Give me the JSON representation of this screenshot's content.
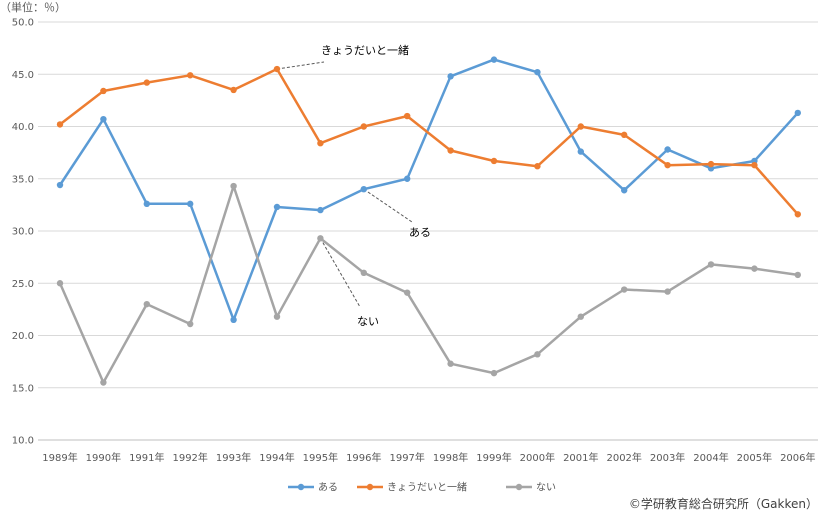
{
  "chart_data": {
    "type": "line",
    "unit_label": "（単位：％）",
    "categories": [
      "1989年",
      "1990年",
      "1991年",
      "1992年",
      "1993年",
      "1994年",
      "1995年",
      "1996年",
      "1997年",
      "1998年",
      "1999年",
      "2000年",
      "2001年",
      "2002年",
      "2003年",
      "2004年",
      "2005年",
      "2006年"
    ],
    "ylim": [
      10,
      50
    ],
    "yticks": [
      "10.0",
      "15.0",
      "20.0",
      "25.0",
      "30.0",
      "35.0",
      "40.0",
      "45.0",
      "50.0"
    ],
    "grid": true,
    "legend_position": "bottom",
    "series": [
      {
        "name": "ある",
        "color": "#5B9BD5",
        "values": [
          34.4,
          40.7,
          32.6,
          32.6,
          21.5,
          32.3,
          32.0,
          34.0,
          35.0,
          44.8,
          46.4,
          45.2,
          37.6,
          33.9,
          37.8,
          36.0,
          36.7,
          41.3
        ]
      },
      {
        "name": "きょうだいと一緒",
        "color": "#ED7D31",
        "values": [
          40.2,
          43.4,
          44.2,
          44.9,
          43.5,
          45.5,
          38.4,
          40.0,
          41.0,
          37.7,
          36.7,
          36.2,
          40.0,
          39.2,
          36.3,
          36.4,
          36.3,
          31.6
        ]
      },
      {
        "name": "ない",
        "color": "#A5A5A5",
        "values": [
          25.0,
          15.5,
          23.0,
          21.1,
          34.3,
          21.8,
          29.3,
          26.0,
          24.1,
          17.3,
          16.4,
          18.2,
          21.8,
          24.4,
          24.2,
          26.8,
          26.4,
          25.8
        ]
      }
    ],
    "annotations": [
      {
        "text": "きょうだいと一緒",
        "series": 1,
        "point": 5
      },
      {
        "text": "ある",
        "series": 0,
        "point": 7
      },
      {
        "text": "ない",
        "series": 2,
        "point": 6
      }
    ]
  },
  "credit": "©学研教育総合研究所（Gakken）"
}
